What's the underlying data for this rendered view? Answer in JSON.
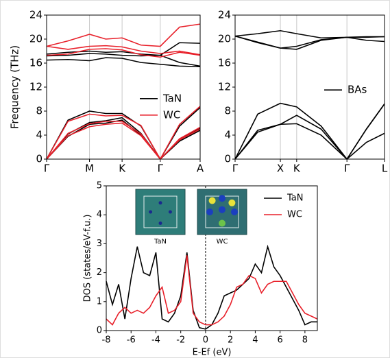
{
  "chart_data": [
    {
      "type": "line",
      "ylabel": "Frequency (THz)",
      "x": [
        0,
        0.5,
        1,
        1.38,
        1.76,
        2.2,
        2.65,
        3.1,
        3.58
      ],
      "xlim": [
        0,
        3.58
      ],
      "xticks": [
        {
          "value": 0,
          "label": "Γ"
        },
        {
          "value": 1,
          "label": "M"
        },
        {
          "value": 1.76,
          "label": "K"
        },
        {
          "value": 2.65,
          "label": "Γ"
        },
        {
          "value": 3.58,
          "label": "A"
        }
      ],
      "ylim": [
        0,
        24
      ],
      "yticks": [
        0,
        4,
        8,
        12,
        16,
        20,
        24
      ],
      "xgrid": true,
      "legend": "center right",
      "series": [
        {
          "name": "TaN",
          "color": "#000000",
          "values": [
            [
              0,
              3.8,
              5.8,
              6.0,
              6.5,
              4.0,
              0,
              3.0,
              4.8
            ],
            [
              0,
              4.2,
              6.1,
              6.4,
              6.9,
              4.3,
              0,
              3.2,
              5.2
            ],
            [
              0,
              6.5,
              8.0,
              7.6,
              7.6,
              5.5,
              0,
              5.5,
              8.6
            ],
            [
              16.5,
              16.6,
              16.4,
              16.9,
              16.8,
              16.1,
              15.8,
              15.5,
              15.4
            ],
            [
              17.2,
              17.3,
              17.6,
              17.5,
              17.3,
              17.2,
              17.3,
              16.1,
              15.5
            ],
            [
              17.5,
              17.8,
              18.0,
              17.8,
              17.9,
              17.5,
              17.3,
              19.4,
              19.3
            ]
          ]
        },
        {
          "name": "WC",
          "color": "#e8202a",
          "values": [
            [
              0,
              3.9,
              5.4,
              5.8,
              6.0,
              3.9,
              0,
              3.2,
              5.0
            ],
            [
              0,
              4.3,
              5.9,
              6.3,
              6.3,
              4.2,
              0,
              3.4,
              5.3
            ],
            [
              0,
              6.3,
              7.5,
              7.2,
              7.3,
              5.6,
              0,
              5.8,
              8.8
            ],
            [
              17.3,
              17.5,
              18.3,
              18.4,
              18.2,
              17.4,
              17.0,
              17.8,
              17.3
            ],
            [
              18.8,
              18.3,
              18.8,
              18.9,
              18.7,
              18.0,
              17.6,
              18.0,
              17.4
            ],
            [
              18.8,
              19.7,
              20.8,
              20.0,
              20.2,
              19.0,
              18.8,
              22.0,
              22.5
            ]
          ]
        }
      ]
    },
    {
      "type": "line",
      "x": [
        0,
        0.5,
        1,
        1.36,
        1.9,
        2.47,
        2.9,
        3.3
      ],
      "xlim": [
        0,
        3.3
      ],
      "xticks": [
        {
          "value": 0,
          "label": "Γ"
        },
        {
          "value": 1,
          "label": "X"
        },
        {
          "value": 1.36,
          "label": "K"
        },
        {
          "value": 2.47,
          "label": "Γ"
        },
        {
          "value": 3.3,
          "label": "L"
        }
      ],
      "ylim": [
        0,
        24
      ],
      "yticks": [
        0,
        4,
        8,
        12,
        16,
        20,
        24
      ],
      "xgrid": true,
      "legend": "center right",
      "series": [
        {
          "name": "BAs",
          "color": "#000000",
          "values": [
            [
              0,
              4.5,
              5.8,
              5.9,
              4.0,
              0,
              2.8,
              4.3
            ],
            [
              0,
              4.8,
              5.8,
              7.3,
              5.0,
              0,
              5.0,
              9.2
            ],
            [
              0,
              7.5,
              9.3,
              8.7,
              5.5,
              0,
              5.0,
              9.2
            ],
            [
              20.5,
              20.9,
              21.4,
              20.9,
              20.2,
              20.3,
              20.3,
              20.4
            ],
            [
              20.5,
              19.4,
              18.5,
              18.3,
              19.8,
              20.3,
              19.8,
              19.6
            ],
            [
              20.5,
              19.5,
              18.5,
              18.8,
              19.9,
              20.3,
              20.4,
              20.4
            ]
          ]
        }
      ]
    },
    {
      "type": "line",
      "ylabel": "DOS (states/eV-f.u.)",
      "xlabel": "E-Ef (eV)",
      "x": [
        -8,
        -7.5,
        -7,
        -6.5,
        -6,
        -5.5,
        -5,
        -4.5,
        -4,
        -3.5,
        -3,
        -2.5,
        -2,
        -1.5,
        -1,
        -0.5,
        0,
        0.5,
        1,
        1.5,
        2,
        2.5,
        3,
        3.5,
        4,
        4.5,
        5,
        5.5,
        6,
        6.5,
        7,
        7.5,
        8,
        8.5,
        9
      ],
      "xlim": [
        -8,
        9
      ],
      "xticks": [
        -8,
        -6,
        -4,
        -2,
        0,
        2,
        4,
        6,
        8
      ],
      "ylim": [
        0,
        5
      ],
      "yticks": [
        0,
        1,
        2,
        3,
        4,
        5
      ],
      "vline": 0,
      "legend": "upper right",
      "insets": [
        {
          "label": "TaN"
        },
        {
          "label": "WC"
        }
      ],
      "series": [
        {
          "name": "TaN",
          "color": "#000000",
          "values": [
            1.7,
            0.9,
            1.6,
            0.4,
            1.8,
            2.9,
            2.0,
            1.9,
            2.7,
            0.4,
            0.3,
            0.6,
            1.2,
            2.7,
            0.7,
            0.1,
            0.05,
            0.2,
            0.6,
            1.2,
            1.3,
            1.4,
            1.6,
            1.8,
            2.3,
            2.0,
            2.9,
            2.2,
            1.9,
            1.5,
            1.1,
            0.7,
            0.2,
            0.3,
            0.3
          ]
        },
        {
          "name": "WC",
          "color": "#e8202a",
          "values": [
            0.4,
            0.2,
            0.6,
            0.8,
            0.6,
            0.7,
            0.6,
            0.8,
            1.2,
            1.5,
            0.6,
            0.7,
            1.0,
            2.6,
            0.6,
            0.3,
            0.2,
            0.2,
            0.3,
            0.5,
            0.9,
            1.5,
            1.6,
            1.9,
            1.8,
            1.3,
            1.6,
            1.7,
            1.7,
            1.7,
            1.3,
            0.9,
            0.6,
            0.5,
            0.4
          ]
        }
      ]
    }
  ]
}
